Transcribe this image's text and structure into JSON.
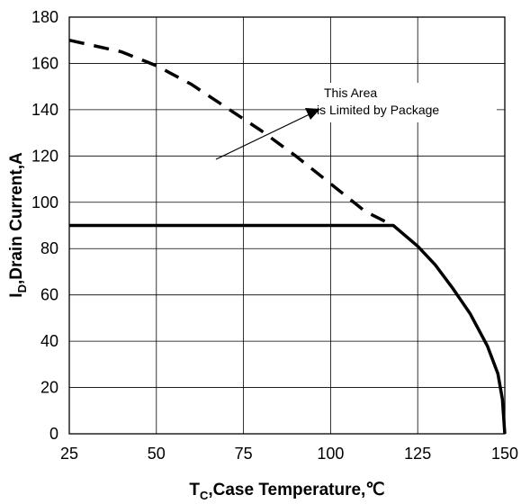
{
  "chart_data": {
    "type": "line",
    "xlabel": {
      "main": "T",
      "sub": "C",
      "rest": ",Case Temperature,℃"
    },
    "ylabel": {
      "main": "I",
      "sub": "D",
      "rest": ",Drain Current,A"
    },
    "xlim": [
      25,
      150
    ],
    "ylim": [
      0,
      180
    ],
    "xticks": [
      25,
      50,
      75,
      100,
      125,
      150
    ],
    "yticks": [
      0,
      20,
      40,
      60,
      80,
      100,
      120,
      140,
      160,
      180
    ],
    "grid": true,
    "annotation": {
      "lines": [
        "This Area",
        "is Limited by Package"
      ]
    },
    "series": [
      {
        "style": "dashed",
        "x": [
          25,
          40,
          50,
          60,
          70,
          80,
          90,
          100,
          110,
          118
        ],
        "y": [
          170,
          165,
          159,
          151,
          141,
          131,
          120,
          108,
          96,
          90
        ]
      },
      {
        "style": "solid",
        "x": [
          25,
          60,
          100,
          118,
          125,
          130,
          135,
          140,
          145,
          148,
          149.3,
          150
        ],
        "y": [
          90,
          90,
          90,
          90,
          81,
          73,
          63,
          52,
          38,
          26,
          15,
          0
        ]
      }
    ]
  }
}
